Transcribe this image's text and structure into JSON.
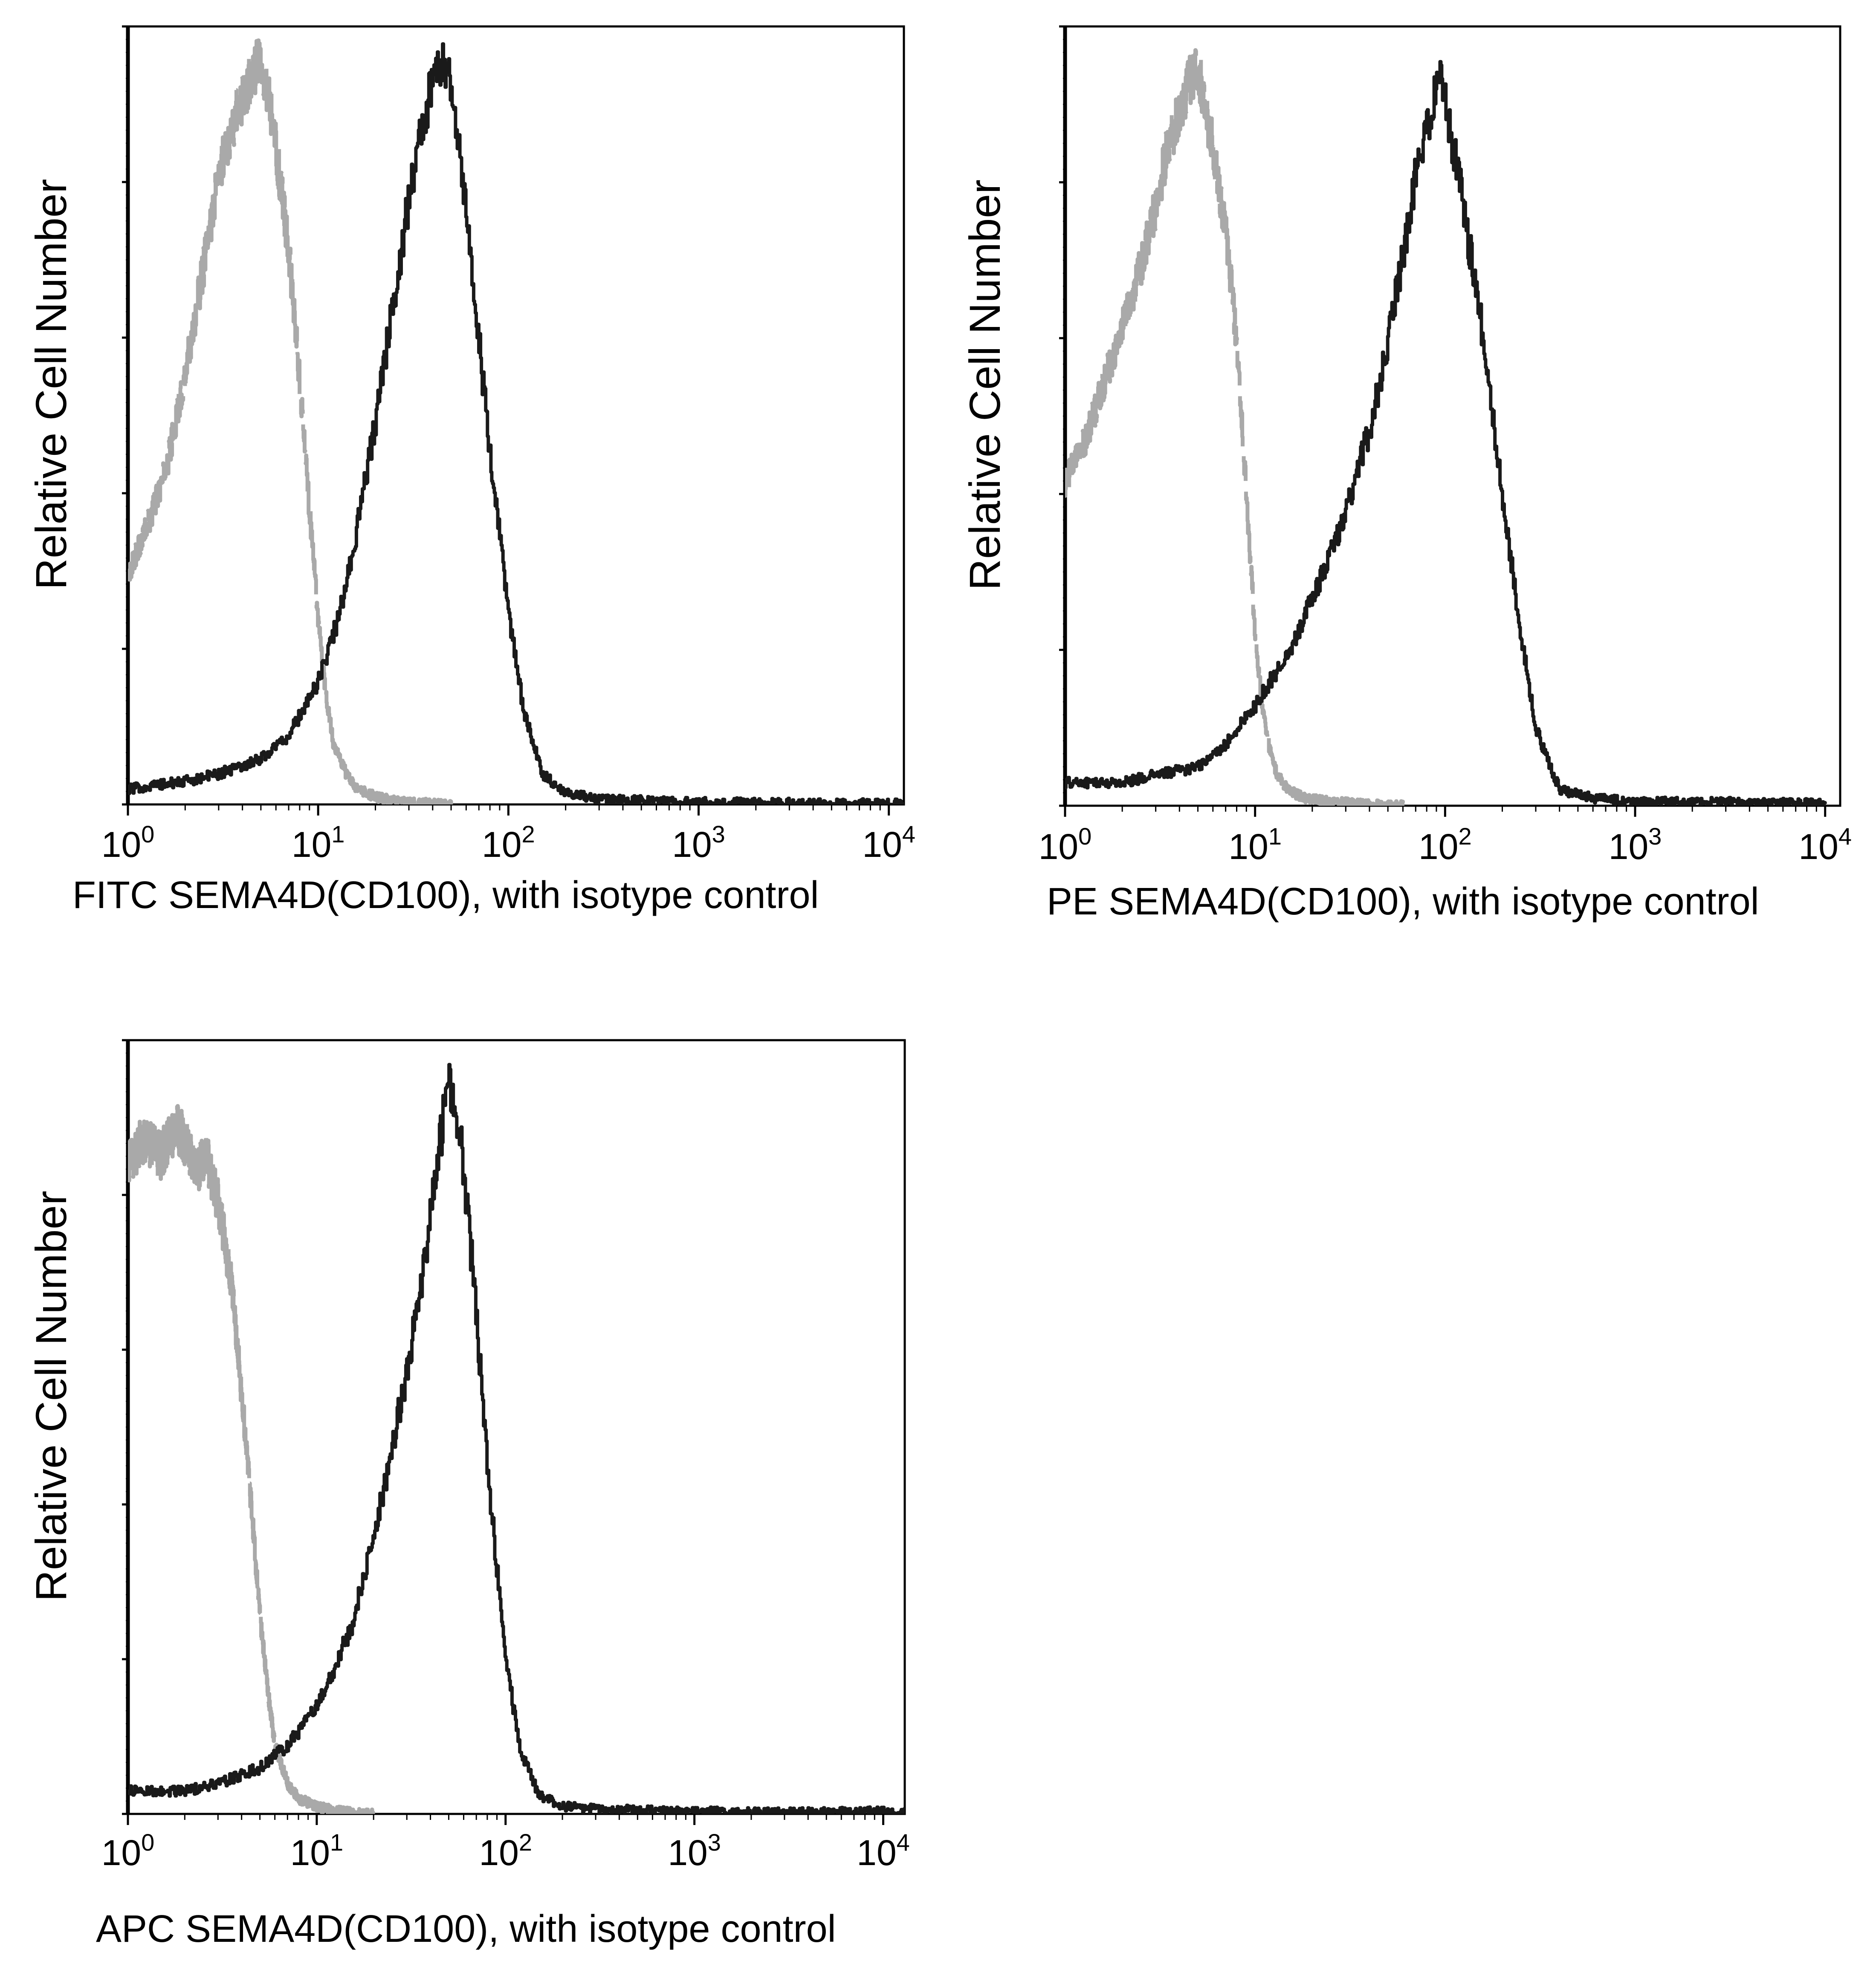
{
  "figure": {
    "panels": [
      {
        "id": "fitc",
        "ylabel": "Relative Cell Number",
        "xlabel": "FITC  SEMA4D(CD100),  with isotype control",
        "xticks": [
          {
            "base": "10",
            "exp": "0"
          },
          {
            "base": "10",
            "exp": "1"
          },
          {
            "base": "10",
            "exp": "2"
          },
          {
            "base": "10",
            "exp": "3"
          },
          {
            "base": "10",
            "exp": "4"
          }
        ]
      },
      {
        "id": "pe",
        "ylabel": "Relative Cell Number",
        "xlabel": "PE SEMA4D(CD100), with isotype control",
        "xticks": [
          {
            "base": "10",
            "exp": "0"
          },
          {
            "base": "10",
            "exp": "1"
          },
          {
            "base": "10",
            "exp": "2"
          },
          {
            "base": "10",
            "exp": "3"
          },
          {
            "base": "10",
            "exp": "4"
          }
        ]
      },
      {
        "id": "apc",
        "ylabel": "Relative Cell Number",
        "xlabel": "APC SEMA4D(CD100), with isotype control",
        "xticks": [
          {
            "base": "10",
            "exp": "0"
          },
          {
            "base": "10",
            "exp": "1"
          },
          {
            "base": "10",
            "exp": "2"
          },
          {
            "base": "10",
            "exp": "3"
          },
          {
            "base": "10",
            "exp": "4"
          }
        ]
      }
    ]
  },
  "chart_data": [
    {
      "type": "area",
      "x_scale": "log",
      "xlim": [
        1,
        12000
      ],
      "ylim": [
        0,
        100
      ],
      "grid": false,
      "colors": {
        "control": "#a9a9a9",
        "stained": "#1a1a1a"
      },
      "series": [
        {
          "style": "dashed",
          "color": "#a9a9a9",
          "x": [
            1,
            1.3,
            1.6,
            2,
            2.5,
            3,
            3.5,
            4,
            4.5,
            5,
            5.5,
            6,
            7,
            8,
            9,
            10,
            11,
            12,
            14,
            16,
            20,
            25,
            30,
            40,
            50
          ],
          "y": [
            30,
            37,
            44,
            56,
            70,
            82,
            88,
            92,
            95,
            97,
            92,
            85,
            72,
            55,
            38,
            24,
            14,
            8,
            4,
            2,
            1,
            0.5,
            0.3,
            0.1,
            0
          ]
        },
        {
          "style": "solid",
          "color": "#1a1a1a",
          "x": [
            1,
            2,
            3,
            5,
            7,
            10,
            13,
            16,
            20,
            25,
            30,
            35,
            40,
            45,
            50,
            55,
            60,
            70,
            80,
            100,
            120,
            150,
            200,
            300,
            500,
            1000,
            3000,
            12000
          ],
          "y": [
            2,
            3,
            4,
            6,
            9,
            16,
            25,
            36,
            50,
            66,
            79,
            88,
            94,
            97,
            94,
            86,
            76,
            60,
            45,
            25,
            12,
            4,
            1.5,
            0.7,
            0.5,
            0.3,
            0.2,
            0.1
          ]
        }
      ]
    },
    {
      "type": "area",
      "x_scale": "log",
      "xlim": [
        1,
        12000
      ],
      "ylim": [
        0,
        100
      ],
      "grid": false,
      "colors": {
        "control": "#a9a9a9",
        "stained": "#1a1a1a"
      },
      "series": [
        {
          "style": "dashed",
          "color": "#a9a9a9",
          "x": [
            1,
            1.3,
            1.6,
            2,
            2.5,
            3,
            3.5,
            4,
            4.5,
            5,
            5.5,
            6,
            7,
            8,
            9,
            10,
            11,
            12,
            13,
            15,
            18,
            25,
            40,
            60
          ],
          "y": [
            42,
            48,
            55,
            62,
            70,
            78,
            86,
            90,
            94,
            96,
            90,
            85,
            75,
            60,
            40,
            22,
            12,
            7,
            4,
            2,
            1,
            0.5,
            0.2,
            0
          ]
        },
        {
          "style": "solid",
          "color": "#1a1a1a",
          "x": [
            1,
            2,
            3,
            5,
            7,
            10,
            15,
            20,
            30,
            40,
            50,
            60,
            70,
            80,
            90,
            100,
            120,
            150,
            200,
            250,
            300,
            400,
            600,
            1000,
            3000,
            10000
          ],
          "y": [
            3,
            3,
            4,
            5,
            8,
            13,
            20,
            27,
            38,
            49,
            60,
            72,
            82,
            88,
            94,
            92,
            80,
            65,
            40,
            22,
            10,
            2,
            1,
            0.5,
            0.5,
            0.3
          ]
        }
      ]
    },
    {
      "type": "area",
      "x_scale": "log",
      "xlim": [
        1,
        13000
      ],
      "ylim": [
        0,
        100
      ],
      "grid": false,
      "colors": {
        "control": "#a9a9a9",
        "stained": "#1a1a1a"
      },
      "series": [
        {
          "style": "dashed",
          "color": "#a9a9a9",
          "x": [
            1,
            1.2,
            1.5,
            1.8,
            2,
            2.3,
            2.6,
            3,
            3.5,
            4,
            4.5,
            5,
            5.5,
            6,
            7,
            8,
            10,
            12,
            15,
            20
          ],
          "y": [
            85,
            88,
            86,
            90,
            88,
            84,
            86,
            80,
            70,
            55,
            40,
            26,
            16,
            9,
            4,
            2,
            1,
            0.5,
            0.2,
            0
          ]
        },
        {
          "style": "solid",
          "color": "#1a1a1a",
          "x": [
            1,
            2,
            3,
            5,
            7,
            10,
            15,
            20,
            25,
            30,
            35,
            40,
            45,
            50,
            55,
            60,
            70,
            80,
            100,
            120,
            150,
            200,
            300,
            500,
            1000,
            3000,
            13000
          ],
          "y": [
            3,
            3,
            4,
            6,
            9,
            14,
            24,
            36,
            48,
            58,
            68,
            78,
            88,
            96,
            92,
            84,
            65,
            45,
            20,
            8,
            2.5,
            1,
            0.6,
            0.5,
            0.3,
            0.2,
            0.4
          ]
        }
      ]
    }
  ]
}
